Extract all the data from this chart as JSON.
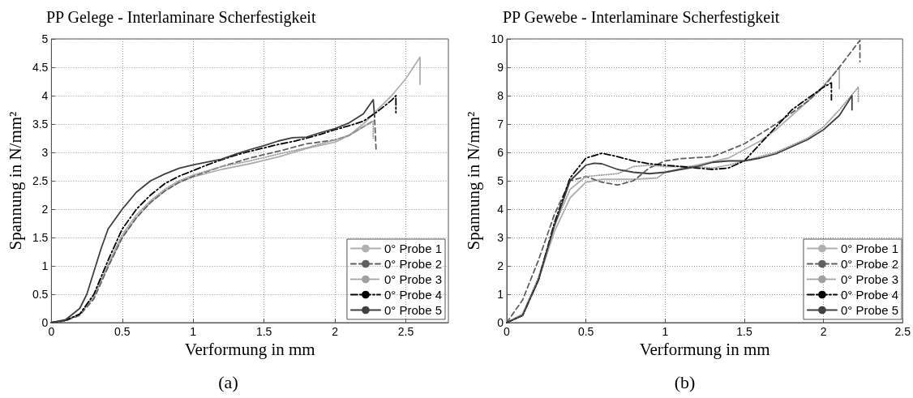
{
  "chart_data": [
    {
      "type": "line",
      "title": "PP Gelege - Interlaminare Scherfestigkeit",
      "xlabel": "Verformung in mm",
      "ylabel": "Spannung in N/mm²",
      "annotations": [
        "(a)"
      ],
      "xlim": [
        0,
        2.8
      ],
      "xticks": [
        0,
        0.5,
        1,
        1.5,
        2,
        2.5
      ],
      "ylim": [
        0,
        5
      ],
      "yticks": [
        0,
        0.5,
        1,
        1.5,
        2,
        2.5,
        3,
        3.5,
        4,
        4.5,
        5
      ],
      "grid": true,
      "legend": "bottom right",
      "marker": "none",
      "series": [
        {
          "name": "0° Probe 1",
          "color": "#b0b0b0",
          "line_style": "solid",
          "x": [
            0,
            0.1,
            0.2,
            0.3,
            0.4,
            0.5,
            0.6,
            0.7,
            0.8,
            0.9,
            1.0,
            1.2,
            1.4,
            1.6,
            1.8,
            2.0,
            2.1,
            2.2,
            2.3,
            2.4,
            2.5,
            2.6,
            2.6
          ],
          "values": [
            0,
            0.04,
            0.14,
            0.45,
            1.0,
            1.5,
            1.85,
            2.12,
            2.32,
            2.47,
            2.57,
            2.7,
            2.8,
            2.92,
            3.07,
            3.18,
            3.3,
            3.5,
            3.75,
            4.0,
            4.3,
            4.68,
            4.2
          ]
        },
        {
          "name": "0° Probe 2",
          "color": "#606060",
          "line_style": "dashed",
          "x": [
            0,
            0.1,
            0.2,
            0.3,
            0.4,
            0.5,
            0.6,
            0.7,
            0.8,
            0.9,
            1.0,
            1.2,
            1.4,
            1.6,
            1.8,
            2.0,
            2.1,
            2.2,
            2.28,
            2.29
          ],
          "values": [
            0,
            0.03,
            0.13,
            0.42,
            0.98,
            1.5,
            1.85,
            2.12,
            2.32,
            2.47,
            2.58,
            2.75,
            2.9,
            3.02,
            3.15,
            3.22,
            3.3,
            3.45,
            3.57,
            3.05
          ]
        },
        {
          "name": "0° Probe 3",
          "color": "#a0a0a0",
          "line_style": "dotted",
          "x": [
            0,
            0.1,
            0.2,
            0.3,
            0.4,
            0.5,
            0.6,
            0.7,
            0.8,
            0.9,
            1.0,
            1.2,
            1.4,
            1.6,
            1.8,
            2.0,
            2.1,
            2.2,
            2.27,
            2.27
          ],
          "values": [
            0,
            0.04,
            0.15,
            0.47,
            1.03,
            1.55,
            1.9,
            2.15,
            2.35,
            2.5,
            2.6,
            2.75,
            2.85,
            2.97,
            3.08,
            3.22,
            3.3,
            3.45,
            3.55,
            3.25
          ]
        },
        {
          "name": "0° Probe 4",
          "color": "#000000",
          "line_style": "dashdot",
          "x": [
            0,
            0.1,
            0.2,
            0.3,
            0.4,
            0.5,
            0.6,
            0.7,
            0.8,
            0.9,
            1.0,
            1.1,
            1.2,
            1.3,
            1.4,
            1.5,
            1.6,
            1.7,
            1.8,
            1.9,
            2.0,
            2.1,
            2.2,
            2.3,
            2.4,
            2.43,
            2.43
          ],
          "values": [
            0,
            0.04,
            0.15,
            0.5,
            1.1,
            1.65,
            2.0,
            2.25,
            2.45,
            2.58,
            2.68,
            2.78,
            2.87,
            2.95,
            3.02,
            3.08,
            3.14,
            3.19,
            3.25,
            3.32,
            3.4,
            3.47,
            3.55,
            3.72,
            3.92,
            4.0,
            3.7
          ]
        },
        {
          "name": "0° Probe 5",
          "color": "#404040",
          "line_style": "solid",
          "x": [
            0,
            0.1,
            0.2,
            0.25,
            0.3,
            0.35,
            0.4,
            0.5,
            0.6,
            0.7,
            0.8,
            0.9,
            1.0,
            1.1,
            1.2,
            1.3,
            1.4,
            1.5,
            1.6,
            1.7,
            1.8,
            1.9,
            2.0,
            2.1,
            2.2,
            2.27,
            2.28
          ],
          "values": [
            0,
            0.05,
            0.25,
            0.5,
            0.9,
            1.3,
            1.65,
            2.0,
            2.3,
            2.5,
            2.62,
            2.72,
            2.78,
            2.83,
            2.88,
            2.97,
            3.05,
            3.12,
            3.2,
            3.26,
            3.27,
            3.35,
            3.42,
            3.52,
            3.68,
            3.93,
            3.62
          ]
        }
      ]
    },
    {
      "type": "line",
      "title": "PP Gewebe - Interlaminare Scherfestigkeit",
      "xlabel": "Verformung in mm",
      "ylabel": "Spannung in N/mm²",
      "annotations": [
        "(b)"
      ],
      "xlim": [
        0,
        2.5
      ],
      "xticks": [
        0,
        0.5,
        1,
        1.5,
        2,
        2.5
      ],
      "ylim": [
        0,
        10
      ],
      "yticks": [
        0,
        1,
        2,
        3,
        4,
        5,
        6,
        7,
        8,
        9,
        10
      ],
      "grid": true,
      "legend": "bottom right",
      "marker": "none",
      "series": [
        {
          "name": "0° Probe 1",
          "color": "#b0b0b0",
          "line_style": "solid",
          "x": [
            0,
            0.1,
            0.2,
            0.3,
            0.4,
            0.5,
            0.6,
            0.8,
            0.95,
            1.0,
            1.2,
            1.4,
            1.5,
            1.6,
            1.7,
            1.8,
            1.9,
            2.0,
            2.1,
            2.1
          ],
          "values": [
            0,
            0.3,
            1.5,
            3.2,
            4.4,
            4.95,
            5.05,
            5.05,
            5.1,
            5.3,
            5.55,
            5.8,
            6.1,
            6.4,
            6.8,
            7.3,
            7.8,
            8.35,
            9.0,
            8.25
          ]
        },
        {
          "name": "0° Probe 2",
          "color": "#606060",
          "line_style": "dashed",
          "x": [
            0,
            0.1,
            0.2,
            0.3,
            0.4,
            0.5,
            0.6,
            0.7,
            0.8,
            0.9,
            1.0,
            1.1,
            1.3,
            1.5,
            1.7,
            1.9,
            2.0,
            2.1,
            2.23,
            2.23
          ],
          "values": [
            0,
            0.8,
            2.2,
            3.8,
            5.0,
            5.15,
            4.95,
            4.85,
            5.0,
            5.45,
            5.7,
            5.78,
            5.85,
            6.3,
            7.0,
            7.8,
            8.3,
            9.0,
            9.95,
            9.2
          ]
        },
        {
          "name": "0° Probe 3",
          "color": "#a0a0a0",
          "line_style": "dotted",
          "x": [
            0,
            0.1,
            0.2,
            0.3,
            0.4,
            0.5,
            0.6,
            0.7,
            0.8,
            0.9,
            1.0,
            1.2,
            1.3,
            1.4,
            1.5,
            1.7,
            1.9,
            2.0,
            2.1,
            2.22,
            2.22
          ],
          "values": [
            0,
            0.3,
            1.6,
            3.4,
            4.7,
            5.15,
            5.2,
            5.25,
            5.5,
            5.55,
            5.5,
            5.5,
            5.45,
            5.55,
            5.7,
            6.0,
            6.5,
            6.9,
            7.5,
            8.3,
            7.8
          ]
        },
        {
          "name": "0° Probe 4",
          "color": "#000000",
          "line_style": "dashdot",
          "x": [
            0,
            0.1,
            0.2,
            0.3,
            0.4,
            0.5,
            0.6,
            0.7,
            0.8,
            0.9,
            1.0,
            1.1,
            1.2,
            1.3,
            1.4,
            1.5,
            1.6,
            1.7,
            1.8,
            1.9,
            2.0,
            2.05,
            2.05
          ],
          "values": [
            0,
            0.25,
            1.5,
            3.5,
            5.1,
            5.8,
            5.97,
            5.85,
            5.7,
            5.6,
            5.55,
            5.5,
            5.45,
            5.4,
            5.45,
            5.7,
            6.3,
            6.9,
            7.5,
            7.9,
            8.3,
            8.45,
            7.85
          ]
        },
        {
          "name": "0° Probe 5",
          "color": "#404040",
          "line_style": "solid",
          "x": [
            0,
            0.1,
            0.2,
            0.3,
            0.4,
            0.5,
            0.55,
            0.6,
            0.7,
            0.8,
            0.9,
            1.0,
            1.1,
            1.2,
            1.3,
            1.4,
            1.5,
            1.6,
            1.7,
            1.8,
            1.9,
            2.0,
            2.1,
            2.18,
            2.18
          ],
          "values": [
            0,
            0.25,
            1.5,
            3.4,
            5.0,
            5.55,
            5.62,
            5.6,
            5.4,
            5.3,
            5.25,
            5.3,
            5.4,
            5.5,
            5.65,
            5.7,
            5.7,
            5.8,
            5.95,
            6.2,
            6.45,
            6.8,
            7.3,
            8.0,
            7.5
          ]
        }
      ]
    }
  ]
}
